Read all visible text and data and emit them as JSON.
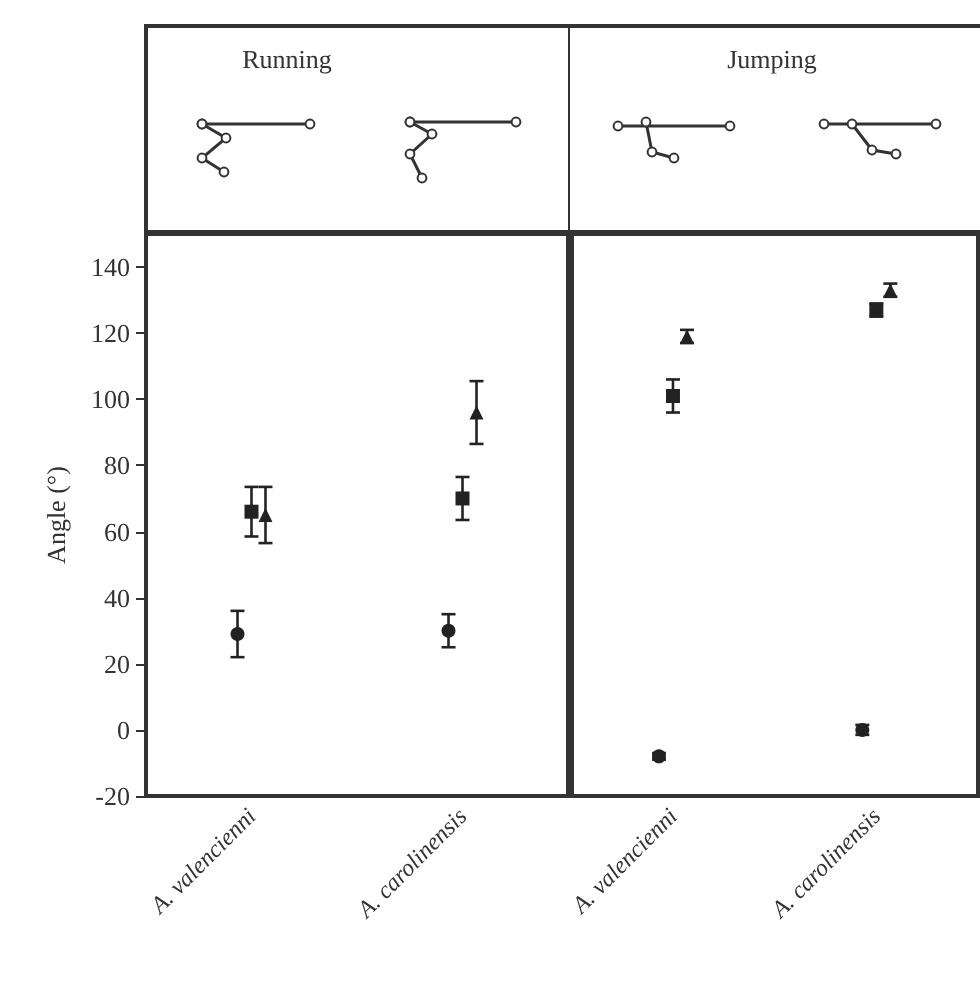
{
  "chart_data": [
    {
      "type": "scatter",
      "title": "Running",
      "ylabel": "Angle (°)",
      "categories": [
        "A. valencienni",
        "A. carolinensis"
      ],
      "ylim": [
        -20,
        150
      ],
      "yticks": [
        -20,
        0,
        20,
        40,
        60,
        80,
        100,
        120,
        140
      ],
      "grid": false,
      "series": [
        {
          "color": "#222222",
          "marker": "circle",
          "values": [
            29,
            30
          ],
          "errors": [
            7,
            5
          ]
        },
        {
          "color": "#222222",
          "marker": "square",
          "values": [
            66,
            70
          ],
          "errors": [
            7.5,
            6.5
          ]
        },
        {
          "color": "#222222",
          "marker": "triangle",
          "values": [
            65,
            96
          ],
          "errors": [
            8.5,
            9.5
          ]
        }
      ]
    },
    {
      "type": "scatter",
      "title": "Jumping",
      "categories": [
        "A. valencienni",
        "A. carolinensis"
      ],
      "ylim": [
        -20,
        150
      ],
      "yticks": [
        -20,
        0,
        20,
        40,
        60,
        80,
        100,
        120,
        140
      ],
      "tick_labels": "x",
      "grid": false,
      "series": [
        {
          "color": "#222222",
          "marker": "circle",
          "values": [
            -8,
            0
          ],
          "errors": [
            1,
            1.5
          ]
        },
        {
          "color": "#222222",
          "marker": "square",
          "values": [
            101,
            127
          ],
          "errors": [
            5,
            2
          ]
        },
        {
          "color": "#222222",
          "marker": "triangle",
          "values": [
            119,
            133
          ],
          "errors": [
            2,
            2
          ]
        }
      ]
    }
  ]
}
